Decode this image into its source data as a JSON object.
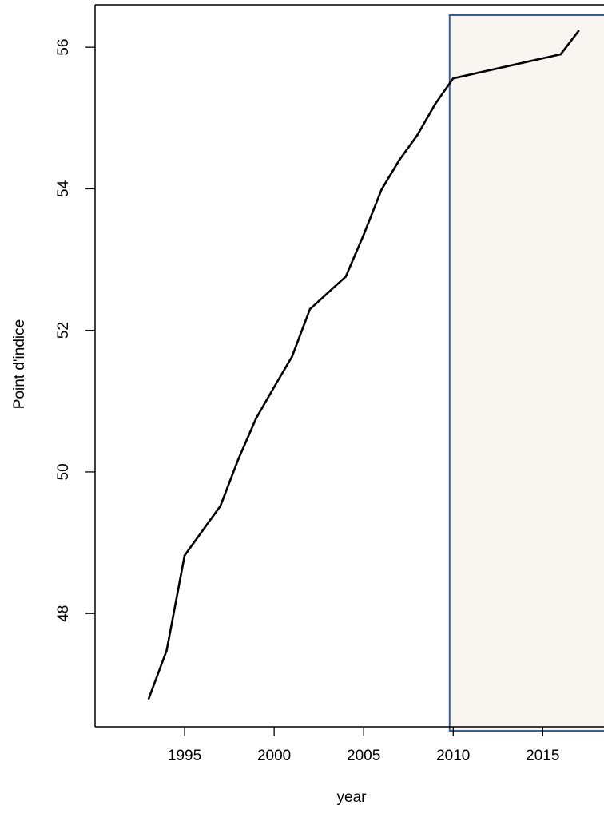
{
  "chart_data": {
    "type": "line",
    "xlabel": "year",
    "ylabel": "Point d'indice",
    "xlim": [
      1990.0,
      2018.6
    ],
    "ylim": [
      46.4,
      56.6
    ],
    "x_ticks": [
      1995,
      2000,
      2005,
      2010,
      2015
    ],
    "y_ticks": [
      48,
      50,
      52,
      54,
      56
    ],
    "x_tick_labels": [
      "1995",
      "2000",
      "2005",
      "2010",
      "2015"
    ],
    "y_tick_labels": [
      "48",
      "50",
      "52",
      "54",
      "56"
    ],
    "grid": false,
    "series": [
      {
        "color": "#000000",
        "x": [
          1993,
          1994,
          1995,
          1996,
          1997,
          1998,
          1999,
          2000,
          2001,
          2002,
          2003,
          2004,
          2005,
          2006,
          2007,
          2008,
          2009,
          2010,
          2016,
          2017
        ],
        "y": [
          46.8,
          47.48,
          48.82,
          49.17,
          49.52,
          50.18,
          50.76,
          51.2,
          51.63,
          52.3,
          52.53,
          52.76,
          53.35,
          53.99,
          54.41,
          54.76,
          55.2,
          55.56,
          55.9,
          56.23
        ]
      }
    ],
    "highlight_region": {
      "x_start": 2009.8,
      "x_end": 2018.6,
      "fill_color": "#f9f5f1",
      "border_color": "#3b5b95"
    }
  }
}
